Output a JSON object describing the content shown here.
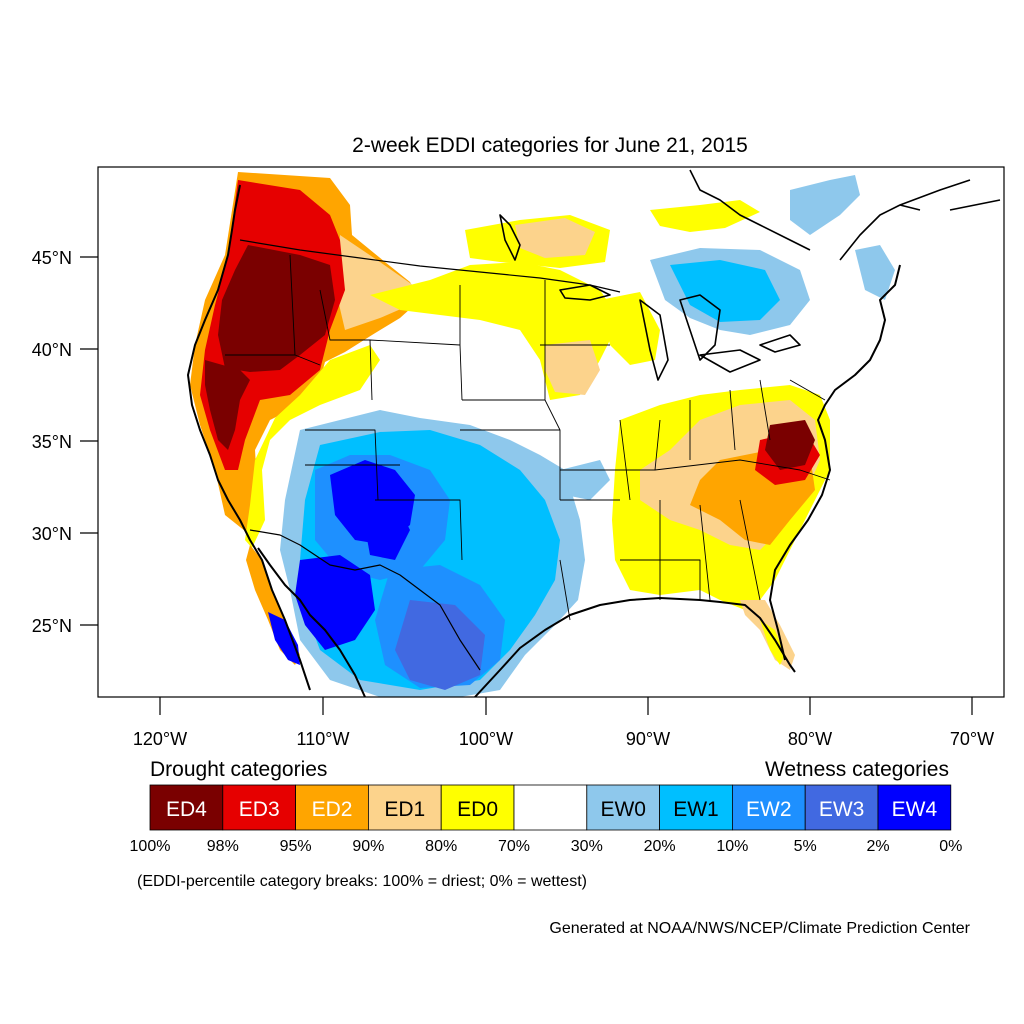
{
  "title": "2-week EDDI categories for June 21, 2015",
  "lat_axis": {
    "ticks": [
      {
        "value": 45,
        "label": "45°N"
      },
      {
        "value": 40,
        "label": "40°N"
      },
      {
        "value": 35,
        "label": "35°N"
      },
      {
        "value": 30,
        "label": "30°N"
      },
      {
        "value": 25,
        "label": "25°N"
      }
    ]
  },
  "lon_axis": {
    "ticks": [
      {
        "value": -120,
        "label": "120°W"
      },
      {
        "value": -110,
        "label": "110°W"
      },
      {
        "value": -100,
        "label": "100°W"
      },
      {
        "value": -90,
        "label": "90°W"
      },
      {
        "value": -80,
        "label": "80°W"
      },
      {
        "value": -70,
        "label": "70°W"
      }
    ]
  },
  "legend": {
    "drought_heading": "Drought categories",
    "wetness_heading": "Wetness categories",
    "categories": [
      {
        "label": "ED4",
        "color": "#7a0000",
        "text_color": "#ffffff"
      },
      {
        "label": "ED3",
        "color": "#e60000",
        "text_color": "#ffffff"
      },
      {
        "label": "ED2",
        "color": "#ffa500",
        "text_color": "#ffffff"
      },
      {
        "label": "ED1",
        "color": "#fcd38c",
        "text_color": "#000000"
      },
      {
        "label": "ED0",
        "color": "#ffff00",
        "text_color": "#000000"
      },
      {
        "label": "",
        "color": "#ffffff",
        "text_color": "#000000"
      },
      {
        "label": "EW0",
        "color": "#8ec8ec",
        "text_color": "#000000"
      },
      {
        "label": "EW1",
        "color": "#00bfff",
        "text_color": "#000000"
      },
      {
        "label": "EW2",
        "color": "#1e90ff",
        "text_color": "#ffffff"
      },
      {
        "label": "EW3",
        "color": "#4169e1",
        "text_color": "#ffffff"
      },
      {
        "label": "EW4",
        "color": "#0000ff",
        "text_color": "#ffffff"
      }
    ],
    "breaks": [
      "100%",
      "98%",
      "95%",
      "90%",
      "80%",
      "70%",
      "30%",
      "20%",
      "10%",
      "5%",
      "2%",
      "0%"
    ],
    "note": "(EDDI-percentile category breaks: 100% = driest; 0% = wettest)"
  },
  "credit": "Generated at NOAA/NWS/NCEP/Climate Prediction Center"
}
